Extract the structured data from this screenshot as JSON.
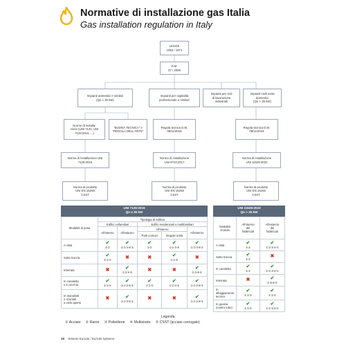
{
  "header": {
    "title_it": "Normative di installazione gas Italia",
    "title_en": "Gas installation regulation in Italy"
  },
  "flow": {
    "legge": "LEGGE\n1083 / 1971",
    "dm": "D.M.\n37 / 2008",
    "imp_domestici": "Impianti domestici e similari\n(Qn ≤ 35 kW)",
    "imp_ospitalita": "Impianti per ospitalità\nprofessionale e similari",
    "imp_cicli": "Impianti per cicli\ndi lavorazione\nindustriali",
    "imp_civili": "Impianti civili extra\ndomestici\n(Qn > 35 kW)",
    "norme_inst": "Norme di installa-\nzione (UNI 7131, UNI\n7129:2015, ...)",
    "buona_tecnica": "\"BUONA TECNICA\" e\n\"REGOLA DELL'ARTE\"",
    "regola_tecnica_1": "Regola tecnica D.M.\n08/11/2019",
    "regola_tecnica_2": "Regola tecnica D.M.\n08/11/2019",
    "norma_uni7129": "Norma di installazione UNI\n7129:2015",
    "norma_uni8723": "Norma di installazione\nUNI 8723:2017",
    "norma_uni11528": "Norma di installazione\nUNI 11528:2022",
    "prodotto_1": "Norma di prodotto\nUNI EN 15266\nCSST",
    "prodotto_2": "Norma di prodotto\nUNI EN 15266\nCSST",
    "prodotto_3": "Norma di prodotto\nUNI EN 15266\nCSST"
  },
  "table_left": {
    "banner": "UNI 7129:2015\nQn ≤ 35 kW",
    "h_modalita": "Modalità di posa",
    "h_tipologia": "Tipologia di edificio",
    "h_unifamiliari": "Edifici unifamiliari",
    "h_residenziali": "Edifici residenziali o multifamiliari",
    "h_allinterno": "All'interno",
    "h_interno": "All'interno",
    "h_esterno": "All'esterno",
    "h_parti_comuni": "Parti comuni",
    "h_singole_unita": "Singole unità",
    "h_esterno2": "All'esterno",
    "rows": [
      {
        "label": "A vista",
        "cells": [
          [
            "ck",
            "①②"
          ],
          [
            "ck",
            "①②③④⑤"
          ],
          [
            "ck",
            "①②"
          ],
          [
            "ck",
            "①②③④"
          ],
          [
            "ck",
            "①②③④⑤"
          ]
        ]
      },
      {
        "label": "Sotto traccia",
        "cells": [
          [
            "ck",
            "①②⑤"
          ],
          [
            "xx",
            ""
          ],
          [
            "xx",
            ""
          ],
          [
            "ck",
            "①②⑤"
          ],
          [
            "xx",
            ""
          ]
        ]
      },
      {
        "label": "Interrata",
        "cells": [
          [
            "xx",
            ""
          ],
          [
            "ck",
            "①③④⑤"
          ],
          [
            "xx",
            ""
          ],
          [
            "xx",
            ""
          ],
          [
            "ck",
            "①③④⑤"
          ]
        ]
      },
      {
        "label": "In canaletta\no in nicchia",
        "cells": [
          [
            "ck",
            "①②⑤"
          ],
          [
            "ck",
            "①②③④⑤"
          ],
          [
            "ck",
            "①②⑤"
          ],
          [
            "ck",
            "①②③⑤"
          ],
          [
            "ck",
            "①②③④⑤"
          ]
        ]
      },
      {
        "label": "In manufatti\no rizontali\na cielo aperto",
        "cells": [
          [
            "xx",
            ""
          ],
          [
            "ck",
            "①②③④⑤"
          ],
          [
            "xx",
            ""
          ],
          [
            "xx",
            ""
          ],
          [
            "ck",
            "①②③④⑤"
          ]
        ]
      }
    ]
  },
  "table_right": {
    "banner": "UNI 11528:2022\nQn > 35 kW",
    "h_modalita": "Modalità\ndi posa",
    "h_interno": "All'interno\ndei\nfabbricati",
    "h_esterno": "All'esterno\ndei\nfabbricati",
    "rows": [
      {
        "label": "A vista",
        "cells": [
          [
            "ck",
            "①②"
          ],
          [
            "ck",
            "①②③④⑤"
          ]
        ]
      },
      {
        "label": "Sotto traccia",
        "cells": [
          [
            "ck",
            "①②"
          ],
          [
            "xx",
            ""
          ]
        ]
      },
      {
        "label": "In canaletta",
        "cells": [
          [
            "ck",
            "①②"
          ],
          [
            "ck",
            "①②③④⑤"
          ]
        ]
      },
      {
        "label": "Interrata",
        "cells": [
          [
            "xx",
            ""
          ],
          [
            "ck",
            "①③④⑤"
          ]
        ]
      },
      {
        "label": "In\nalloggiamento\ntecnico",
        "cells": [
          [
            "ck",
            "①②⑤"
          ],
          [
            "ck",
            "①②⑤"
          ]
        ]
      },
      {
        "label": "In guaina\n(contro tubo)",
        "cells": [
          [
            "ck",
            "①②⑤"
          ],
          [
            "ck",
            "①②③④⑤"
          ]
        ]
      }
    ]
  },
  "legend": {
    "title": "Legenda:",
    "items": [
      "① Acciaio",
      "② Rame",
      "③ Polietilene",
      "④ Multistrato",
      "⑤ CSST (acciaio corrugato)"
    ]
  },
  "footer": {
    "page": "18",
    "text": "Sistemi Eurotis / Eurotis systems"
  }
}
